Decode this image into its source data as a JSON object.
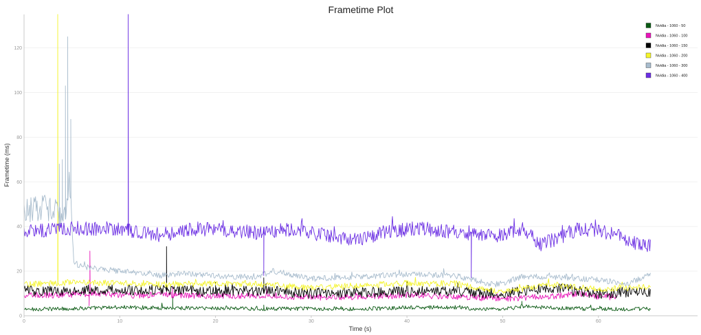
{
  "chart_data": {
    "type": "line",
    "title": "Frametime Plot",
    "xlabel": "Time (s)",
    "ylabel": "Frametime (ms)",
    "xlim": [
      0,
      69
    ],
    "ylim": [
      0,
      135
    ],
    "xticks": [
      "0",
      "10",
      "20",
      "30",
      "40",
      "50",
      "60"
    ],
    "yticks": [
      "0",
      "20",
      "40",
      "60",
      "80",
      "100",
      "120"
    ],
    "grid": true,
    "legend_position": "top-right",
    "series": [
      {
        "name": "Nvidia - 1060 - 50",
        "color": "#0b5a14",
        "baseline": 3.2,
        "x_end": 65.5,
        "points": [
          [
            0,
            2.8
          ],
          [
            5,
            3.2
          ],
          [
            10,
            3.8
          ],
          [
            15,
            3.5
          ],
          [
            20,
            3.4
          ],
          [
            25,
            3.1
          ],
          [
            30,
            3.2
          ],
          [
            35,
            3.0
          ],
          [
            40,
            3.6
          ],
          [
            45,
            3.8
          ],
          [
            48,
            2.7
          ],
          [
            50,
            2.8
          ],
          [
            52,
            4.2
          ],
          [
            55,
            3.5
          ],
          [
            60,
            3.0
          ],
          [
            65.5,
            3.0
          ]
        ],
        "spikes": [
          [
            15.5,
            8.5
          ],
          [
            25,
            4.8
          ],
          [
            52,
            6.5
          ]
        ]
      },
      {
        "name": "Nvidia - 1060 - 100",
        "color": "#e815b8",
        "baseline": 9.0,
        "x_end": 62,
        "points": [
          [
            0,
            9.0
          ],
          [
            5,
            9.5
          ],
          [
            8,
            10.0
          ],
          [
            10,
            9.2
          ],
          [
            15,
            9.4
          ],
          [
            20,
            8.8
          ],
          [
            25,
            9.2
          ],
          [
            30,
            8.2
          ],
          [
            35,
            8.6
          ],
          [
            40,
            9.2
          ],
          [
            45,
            8.5
          ],
          [
            50,
            7.6
          ],
          [
            55,
            8.6
          ],
          [
            58,
            10.0
          ],
          [
            60,
            8.5
          ],
          [
            62,
            8.5
          ]
        ],
        "spikes": [
          [
            6.9,
            29
          ],
          [
            6.8,
            4.5
          ],
          [
            15.5,
            13
          ]
        ]
      },
      {
        "name": "Nvidia - 1060 - 150",
        "color": "#000000",
        "baseline": 11.0,
        "x_end": 65.5,
        "points": [
          [
            0,
            11.0
          ],
          [
            5,
            11.5
          ],
          [
            10,
            11.5
          ],
          [
            15,
            11.5
          ],
          [
            20,
            10.8
          ],
          [
            25,
            11.0
          ],
          [
            30,
            10.2
          ],
          [
            35,
            10.6
          ],
          [
            40,
            10.6
          ],
          [
            45,
            11.2
          ],
          [
            50,
            9.5
          ],
          [
            55,
            12.8
          ],
          [
            58,
            10.8
          ],
          [
            60,
            10.0
          ],
          [
            65.5,
            11.0
          ]
        ],
        "spikes": [
          [
            14.9,
            31
          ],
          [
            20,
            15
          ],
          [
            25,
            17
          ]
        ]
      },
      {
        "name": "Nvidia - 1060 - 200",
        "color": "#f4f42a",
        "baseline": 14.0,
        "x_end": 65.5,
        "points": [
          [
            0,
            14.0
          ],
          [
            5,
            15.0
          ],
          [
            10,
            14.5
          ],
          [
            15,
            14.0
          ],
          [
            20,
            14.5
          ],
          [
            25,
            14.0
          ],
          [
            30,
            12.5
          ],
          [
            35,
            13.5
          ],
          [
            40,
            14.5
          ],
          [
            45,
            14.5
          ],
          [
            50,
            10.5
          ],
          [
            55,
            14.0
          ],
          [
            60,
            12.0
          ],
          [
            65.5,
            13.0
          ]
        ],
        "spikes": [
          [
            3.5,
            135
          ]
        ]
      },
      {
        "name": "Nvidia - 1060 - 300",
        "color": "#a8bccd",
        "baseline": 19.0,
        "x_end": 65.5,
        "points": [
          [
            0,
            47
          ],
          [
            2,
            49
          ],
          [
            4,
            45
          ],
          [
            4.8,
            55
          ],
          [
            5.2,
            24
          ],
          [
            6,
            22
          ],
          [
            10,
            20
          ],
          [
            14,
            18
          ],
          [
            17,
            19
          ],
          [
            20,
            18
          ],
          [
            24,
            17
          ],
          [
            26,
            20
          ],
          [
            30,
            16.5
          ],
          [
            35,
            17.5
          ],
          [
            40,
            18.5
          ],
          [
            45,
            18.0
          ],
          [
            49,
            14.0
          ],
          [
            50,
            14.5
          ],
          [
            52,
            17.5
          ],
          [
            55,
            17.5
          ],
          [
            60,
            16.0
          ],
          [
            63,
            14.5
          ],
          [
            65.5,
            18.5
          ]
        ],
        "spikes": [
          [
            4.6,
            125
          ],
          [
            4.3,
            103
          ],
          [
            4.0,
            70
          ],
          [
            3.7,
            68
          ],
          [
            4.9,
            88
          ]
        ]
      },
      {
        "name": "Nvidia - 1060 - 400",
        "color": "#6b2ee3",
        "baseline": 38.0,
        "x_end": 65.5,
        "points": [
          [
            0,
            38
          ],
          [
            5,
            39
          ],
          [
            10,
            39
          ],
          [
            14,
            36
          ],
          [
            18,
            39
          ],
          [
            22,
            38
          ],
          [
            25,
            37
          ],
          [
            28,
            39
          ],
          [
            30,
            37
          ],
          [
            35,
            34
          ],
          [
            38,
            38
          ],
          [
            42,
            39
          ],
          [
            46,
            37
          ],
          [
            50,
            36
          ],
          [
            52,
            39
          ],
          [
            54,
            32
          ],
          [
            56,
            35
          ],
          [
            58,
            39
          ],
          [
            60,
            38
          ],
          [
            62,
            36
          ],
          [
            64,
            32
          ],
          [
            65.5,
            31
          ]
        ],
        "spikes": [
          [
            10.9,
            135
          ],
          [
            25,
            18
          ],
          [
            46.7,
            17
          ]
        ]
      }
    ]
  }
}
